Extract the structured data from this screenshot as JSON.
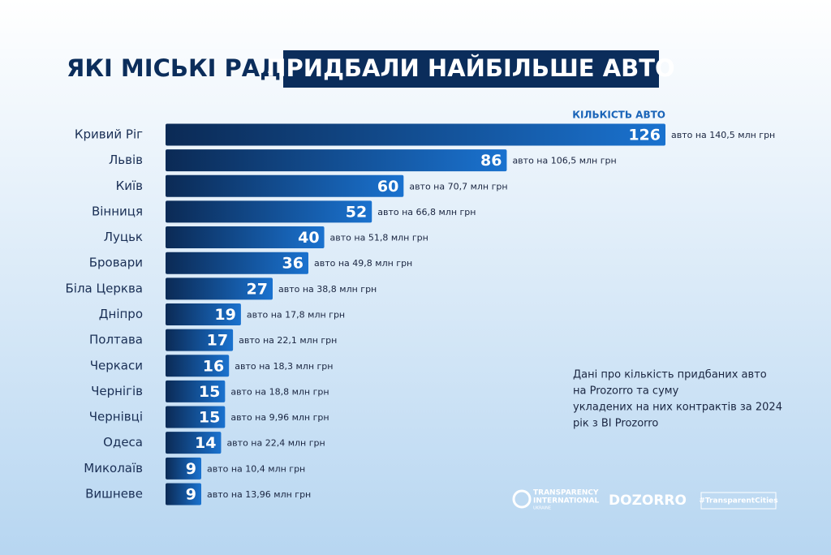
{
  "chart_data": {
    "type": "bar",
    "orientation": "horizontal",
    "title": "ЯКІ МІСЬКІ РАДИ",
    "title_highlight": "ПРИДБАЛИ НАЙБІЛЬШЕ АВТО",
    "value_axis_label": "КІЛЬКІСТЬ АВТО",
    "categories": [
      "Кривий Ріг",
      "Львів",
      "Київ",
      "Вінниця",
      "Луцьк",
      "Бровари",
      "Біла Церква",
      "Дніпро",
      "Полтава",
      "Черкаси",
      "Чернігів",
      "Чернівці",
      "Одеса",
      "Миколаїв",
      "Вишневе"
    ],
    "values": [
      126,
      86,
      60,
      52,
      40,
      36,
      27,
      19,
      17,
      16,
      15,
      15,
      14,
      9,
      9
    ],
    "bar_notes": [
      "авто на 140,5 млн грн",
      "авто на 106,5 млн грн",
      "авто на 70,7 млн грн",
      "авто на 66,8 млн грн",
      "авто на 51,8 млн грн",
      "авто на 49,8 млн грн",
      "авто на 38,8 млн грн",
      "авто на 17,8 млн грн",
      "авто на 22,1 млн грн",
      "авто на 18,3 млн грн",
      "авто на 18,8 млн грн",
      "авто на 9,96 млн грн",
      "авто на 22,4 млн грн",
      "авто на 10,4 млн грн",
      "авто на 13,96 млн грн"
    ],
    "color_start": "#0b2a55",
    "color_end": "#1a72cf",
    "source_note": [
      "Дані про кількість придбаних авто",
      "на Prozorro та суму",
      "укладених на них контрактів за 2024",
      "рік з BI Prozorro"
    ],
    "logos": [
      "TRANSPARENCY",
      "INTERNATIONAL",
      "UKRAINE",
      "DOZORRO",
      "#TransparentCities"
    ]
  }
}
